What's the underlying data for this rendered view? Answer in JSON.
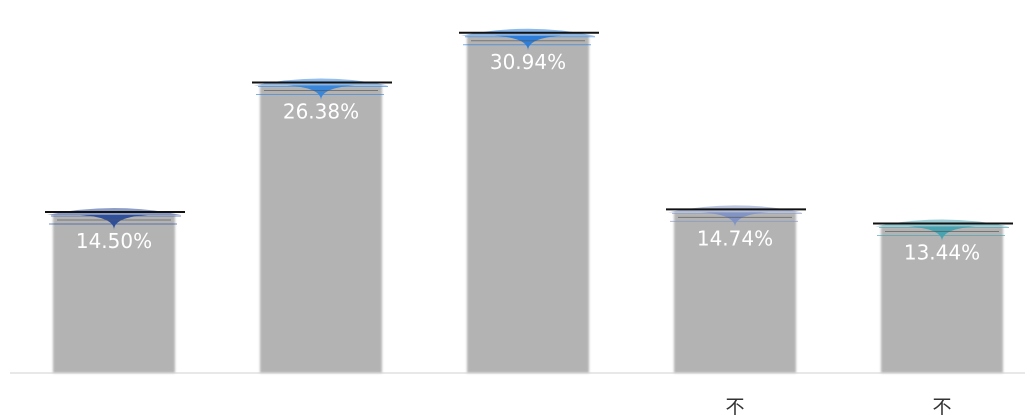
{
  "chart_data": {
    "type": "bar",
    "title": "",
    "xlabel": "",
    "ylabel": "",
    "categories": [
      "",
      "",
      "",
      "不",
      "不"
    ],
    "values": [
      14.5,
      26.38,
      30.94,
      14.74,
      13.44
    ],
    "data_labels": [
      "14.50%",
      "26.38%",
      "30.94%",
      "14.74%",
      "13.44%"
    ],
    "ylim": [
      0,
      32
    ],
    "grid": false,
    "legend": "none",
    "colors": {
      "bar": "#b3b3b3",
      "baseline": "#d0d0d0",
      "data_label": "#ffffff",
      "tick_label": "#333333",
      "caps": [
        "#2f4f9a",
        "#3a86d8",
        "#2e7fd9",
        "#8294c4",
        "#4aa3b0"
      ]
    }
  }
}
